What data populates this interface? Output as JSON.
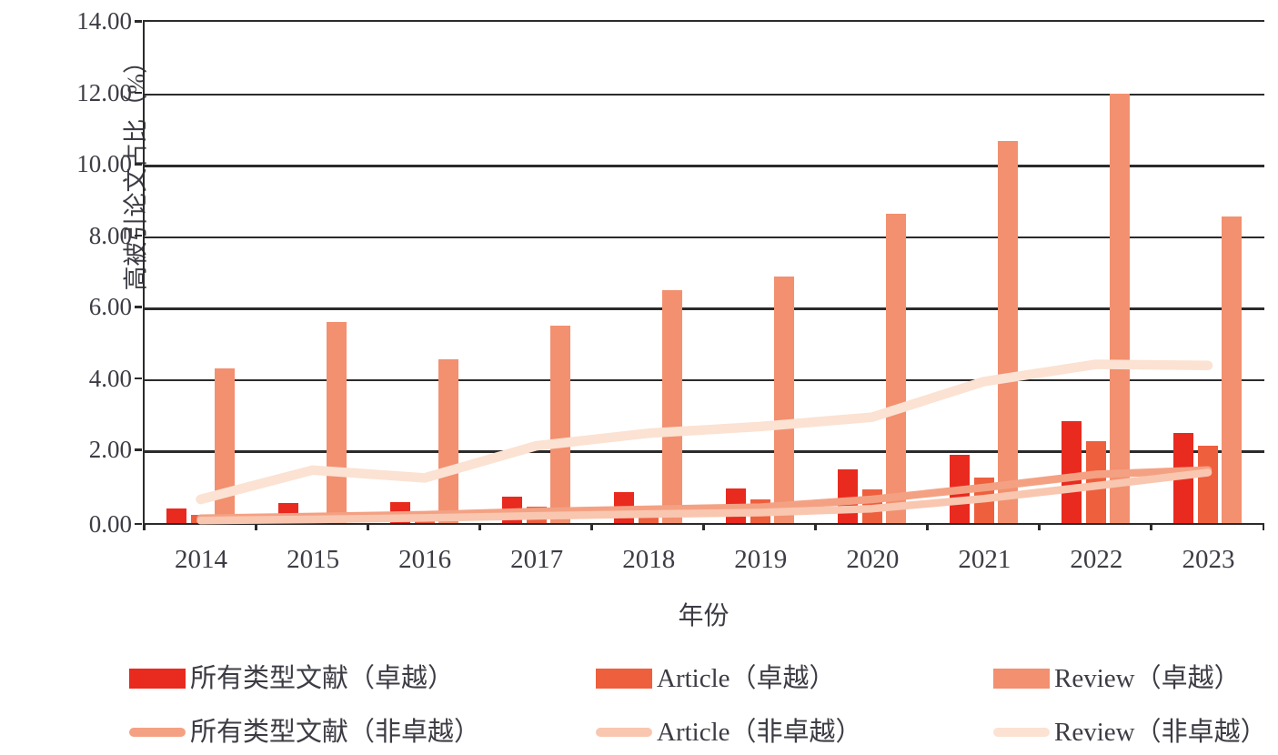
{
  "chart_data": {
    "type": "bar",
    "subtype": "grouped-bars-with-overlay-lines",
    "title": "",
    "xlabel": "年份",
    "ylabel": "高被引论文占比（%）",
    "ylim": [
      0,
      14
    ],
    "ytick_step": 2,
    "ytick_labels": [
      "0.00",
      "2.00",
      "4.00",
      "6.00",
      "8.00",
      "10.00",
      "12.00",
      "14.00"
    ],
    "grid": "horizontal gridlines on, left axis border, no right border",
    "legend_position": "bottom, two rows x three columns",
    "categories": [
      "2014",
      "2015",
      "2016",
      "2017",
      "2018",
      "2019",
      "2020",
      "2021",
      "2022",
      "2023"
    ],
    "bar_series": [
      {
        "name": "所有类型文献（卓越）",
        "color": "#e92a1f",
        "values": [
          0.4,
          0.55,
          0.58,
          0.73,
          0.87,
          0.98,
          1.5,
          1.92,
          2.84,
          2.52
        ]
      },
      {
        "name": "Article（卓越）",
        "color": "#ee5f3d",
        "values": [
          0.22,
          0.27,
          0.32,
          0.46,
          0.48,
          0.65,
          0.95,
          1.27,
          2.29,
          2.16
        ]
      },
      {
        "name": "Review（卓越）",
        "color": "#f29070",
        "values": [
          4.32,
          5.62,
          4.58,
          5.52,
          6.51,
          6.91,
          8.66,
          10.68,
          12.01,
          8.57
        ]
      }
    ],
    "line_series": [
      {
        "name": "所有类型文献（非卓越）",
        "color": "#f4a183",
        "stroke_width": 8.5,
        "values": [
          0.17,
          0.22,
          0.27,
          0.36,
          0.42,
          0.48,
          0.7,
          1.03,
          1.4,
          1.52
        ]
      },
      {
        "name": "Article（非卓越）",
        "color": "#f9c6b0",
        "stroke_width": 8.5,
        "values": [
          0.11,
          0.14,
          0.18,
          0.24,
          0.29,
          0.33,
          0.44,
          0.72,
          1.08,
          1.45
        ]
      },
      {
        "name": "Review（非卓越）",
        "color": "#fbe2d2",
        "stroke_width": 10.5,
        "values": [
          0.7,
          1.52,
          1.3,
          2.2,
          2.55,
          2.74,
          3.0,
          4.0,
          4.48,
          4.45
        ]
      }
    ]
  },
  "legend": {
    "items": [
      {
        "label": "所有类型文献（卓越）",
        "swatch": "bar",
        "color": "#e92a1f",
        "row": 0,
        "col": 0
      },
      {
        "label": "Article（卓越）",
        "swatch": "bar",
        "color": "#ee5f3d",
        "row": 0,
        "col": 1
      },
      {
        "label": "Review（卓越）",
        "swatch": "bar",
        "color": "#f29070",
        "row": 0,
        "col": 2
      },
      {
        "label": "所有类型文献（非卓越）",
        "swatch": "line",
        "color": "#f4a183",
        "row": 1,
        "col": 0
      },
      {
        "label": "Article（非卓越）",
        "swatch": "line",
        "color": "#f9c6b0",
        "row": 1,
        "col": 1
      },
      {
        "label": "Review（非卓越）",
        "swatch": "line",
        "color": "#fbe2d2",
        "row": 1,
        "col": 2
      }
    ]
  },
  "colors": {
    "axis": "#2b2b2b",
    "text": "#3c3c44",
    "background": "#ffffff"
  }
}
